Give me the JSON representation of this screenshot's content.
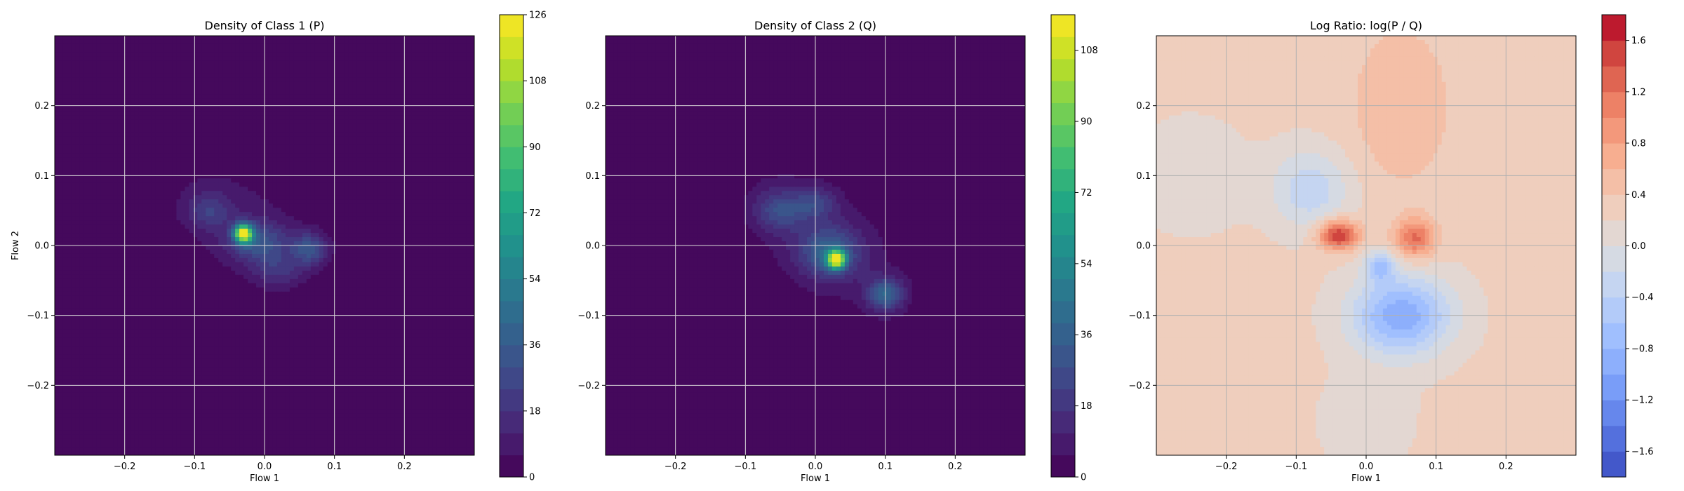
{
  "chart_data": [
    {
      "type": "heatmap",
      "title": "Density of Class 1 (P)",
      "xlabel": "Flow 1",
      "ylabel": "Flow 2",
      "xlim": [
        -0.3,
        0.3
      ],
      "ylim": [
        -0.3,
        0.3
      ],
      "xticks": [
        "−0.2",
        "−0.1",
        "0.0",
        "0.1",
        "0.2"
      ],
      "yticks": [
        "−0.2",
        "−0.1",
        "0.0",
        "0.1",
        "0.2"
      ],
      "grid": true,
      "colormap": "viridis",
      "colorbar": {
        "min": 0,
        "max": 126,
        "ticks": [
          "0",
          "18",
          "36",
          "54",
          "72",
          "90",
          "108",
          "126"
        ],
        "ticks_values": [
          0,
          18,
          36,
          54,
          72,
          90,
          108,
          126
        ],
        "levels": 21
      },
      "blobs": [
        {
          "cx": -0.04,
          "cy": 0.04,
          "sx": 0.085,
          "sy": 0.055,
          "rot": -35,
          "w": 8
        },
        {
          "cx": -0.03,
          "cy": 0.017,
          "sx": 0.009,
          "sy": 0.009,
          "rot": 0,
          "w": 115
        },
        {
          "cx": -0.01,
          "cy": 0.005,
          "sx": 0.03,
          "sy": 0.02,
          "rot": 0,
          "w": 28
        },
        {
          "cx": 0.065,
          "cy": -0.005,
          "sx": 0.018,
          "sy": 0.016,
          "rot": 0,
          "w": 30
        },
        {
          "cx": -0.08,
          "cy": 0.05,
          "sx": 0.022,
          "sy": 0.018,
          "rot": 0,
          "w": 18
        },
        {
          "cx": 0.02,
          "cy": -0.035,
          "sx": 0.025,
          "sy": 0.018,
          "rot": 0,
          "w": 16
        }
      ]
    },
    {
      "type": "heatmap",
      "title": "Density of Class 2 (Q)",
      "xlabel": "Flow 1",
      "ylabel": "",
      "xlim": [
        -0.3,
        0.3
      ],
      "ylim": [
        -0.3,
        0.3
      ],
      "xticks": [
        "−0.2",
        "−0.1",
        "0.0",
        "0.1",
        "0.2"
      ],
      "yticks": [
        "−0.2",
        "−0.1",
        "0.0",
        "0.1",
        "0.2"
      ],
      "grid": true,
      "colormap": "viridis",
      "colorbar": {
        "min": 0,
        "max": 117,
        "ticks": [
          "0",
          "18",
          "36",
          "54",
          "72",
          "90",
          "108"
        ],
        "ticks_values": [
          0,
          18,
          36,
          54,
          72,
          90,
          108
        ],
        "levels": 21
      },
      "blobs": [
        {
          "cx": 0.01,
          "cy": 0.01,
          "sx": 0.1,
          "sy": 0.055,
          "rot": -40,
          "w": 9
        },
        {
          "cx": 0.03,
          "cy": -0.02,
          "sx": 0.009,
          "sy": 0.009,
          "rot": 0,
          "w": 105
        },
        {
          "cx": 0.02,
          "cy": -0.01,
          "sx": 0.03,
          "sy": 0.025,
          "rot": 0,
          "w": 30
        },
        {
          "cx": 0.1,
          "cy": -0.07,
          "sx": 0.018,
          "sy": 0.016,
          "rot": 0,
          "w": 35
        },
        {
          "cx": -0.05,
          "cy": 0.05,
          "sx": 0.025,
          "sy": 0.02,
          "rot": 0,
          "w": 22
        },
        {
          "cx": 0.0,
          "cy": 0.06,
          "sx": 0.02,
          "sy": 0.015,
          "rot": 0,
          "w": 18
        }
      ]
    },
    {
      "type": "heatmap",
      "title": "Log Ratio: log(P / Q)",
      "xlabel": "Flow 1",
      "ylabel": "",
      "xlim": [
        -0.3,
        0.3
      ],
      "ylim": [
        -0.3,
        0.3
      ],
      "xticks": [
        "−0.2",
        "−0.1",
        "0.0",
        "0.1",
        "0.2"
      ],
      "yticks": [
        "−0.2",
        "−0.1",
        "0.0",
        "0.1",
        "0.2"
      ],
      "grid": true,
      "colormap": "coolwarm",
      "colorbar": {
        "min": -1.8,
        "max": 1.8,
        "ticks": [
          "−1.6",
          "−1.2",
          "−0.8",
          "−0.4",
          "0.0",
          "0.4",
          "0.8",
          "1.2",
          "1.6"
        ],
        "ticks_values": [
          -1.6,
          -1.2,
          -0.8,
          -0.4,
          0.0,
          0.4,
          0.8,
          1.2,
          1.6
        ],
        "levels": 18
      },
      "background": 0.25,
      "blobs": [
        {
          "cx": 0.05,
          "cy": -0.1,
          "sx": 0.05,
          "sy": 0.04,
          "rot": 0,
          "w": -1.2
        },
        {
          "cx": -0.08,
          "cy": 0.08,
          "sx": 0.04,
          "sy": 0.04,
          "rot": 0,
          "w": -0.6
        },
        {
          "cx": 0.02,
          "cy": -0.03,
          "sx": 0.015,
          "sy": 0.015,
          "rot": 0,
          "w": -0.8
        },
        {
          "cx": -0.04,
          "cy": 0.015,
          "sx": 0.02,
          "sy": 0.015,
          "rot": 0,
          "w": 1.4
        },
        {
          "cx": 0.07,
          "cy": 0.01,
          "sx": 0.02,
          "sy": 0.02,
          "rot": 0,
          "w": 1.0
        },
        {
          "cx": 0.05,
          "cy": 0.2,
          "sx": 0.05,
          "sy": 0.08,
          "rot": 0,
          "w": 0.35
        },
        {
          "cx": -0.25,
          "cy": 0.1,
          "sx": 0.05,
          "sy": 0.05,
          "rot": 0,
          "w": -0.25
        },
        {
          "cx": 0.0,
          "cy": -0.25,
          "sx": 0.05,
          "sy": 0.05,
          "rot": 0,
          "w": -0.15
        }
      ]
    }
  ]
}
